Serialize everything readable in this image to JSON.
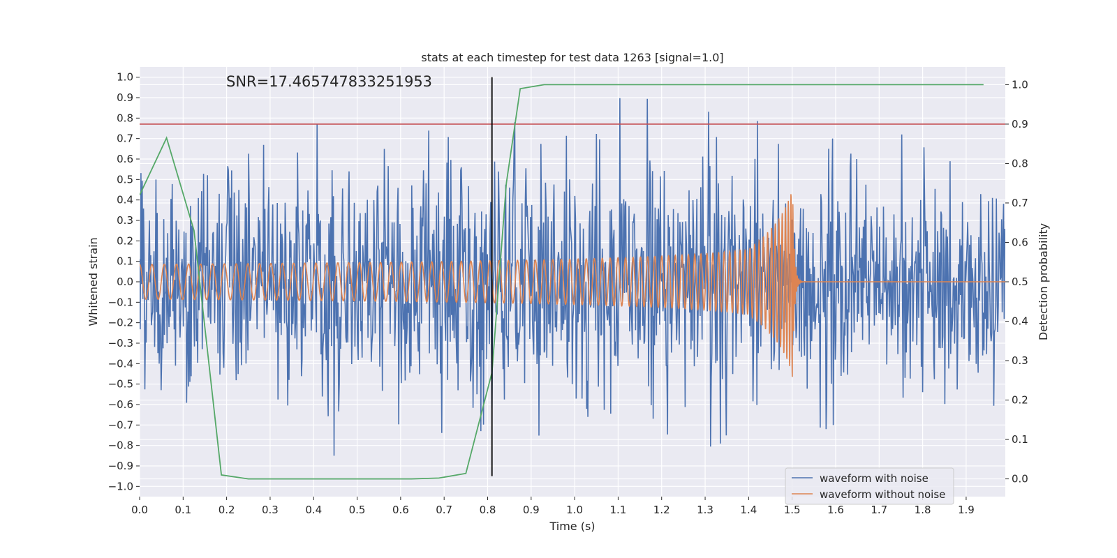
{
  "chart_data": {
    "type": "line",
    "title": "stats at each timestep for test data 1263 [signal=1.0]",
    "annotation": "SNR=17.465747833251953",
    "xlabel": "Time (s)",
    "ylabel": "Whitened strain",
    "y2label": "Detection probability",
    "xlim": [
      0.0,
      1.99
    ],
    "ylim": [
      -1.05,
      1.05
    ],
    "y2lim": [
      -0.045,
      1.045
    ],
    "xticks": [
      0.0,
      0.1,
      0.2,
      0.3,
      0.4,
      0.5,
      0.6,
      0.7,
      0.8,
      0.9,
      1.0,
      1.1,
      1.2,
      1.3,
      1.4,
      1.5,
      1.6,
      1.7,
      1.8,
      1.9
    ],
    "xtick_labels": [
      "0.0",
      "0.1",
      "0.2",
      "0.3",
      "0.4",
      "0.5",
      "0.6",
      "0.7",
      "0.8",
      "0.9",
      "1.0",
      "1.1",
      "1.2",
      "1.3",
      "1.4",
      "1.5",
      "1.6",
      "1.7",
      "1.8",
      "1.9"
    ],
    "yticks": [
      1.0,
      0.9,
      0.8,
      0.7,
      0.6,
      0.5,
      0.4,
      0.3,
      0.2,
      0.1,
      0.0,
      -0.1,
      -0.2,
      -0.3,
      -0.4,
      -0.5,
      -0.6,
      -0.7,
      -0.8,
      -0.9,
      -1.0
    ],
    "ytick_labels": [
      "1.0",
      "0.9",
      "0.8",
      "0.7",
      "0.6",
      "0.5",
      "0.4",
      "0.3",
      "0.2",
      "0.1",
      "0.0",
      "−0.1",
      "−0.2",
      "−0.3",
      "−0.4",
      "−0.5",
      "−0.6",
      "−0.7",
      "−0.8",
      "−0.9",
      "−1.0"
    ],
    "y2ticks": [
      1.0,
      0.9,
      0.8,
      0.7,
      0.6,
      0.5,
      0.4,
      0.3,
      0.2,
      0.1,
      0.0
    ],
    "y2tick_labels": [
      "1.0",
      "0.9",
      "0.8",
      "0.7",
      "0.6",
      "0.5",
      "0.4",
      "0.3",
      "0.2",
      "0.1",
      "0.0"
    ],
    "grid": true,
    "legend_position": "bottom-right",
    "threshold": {
      "axis": "right",
      "value": 0.9,
      "color": "#C44E52"
    },
    "vertical_marker": {
      "x": 0.81,
      "from": -0.95,
      "to": 1.0,
      "color": "#000000"
    },
    "series": [
      {
        "name": "waveform with noise",
        "axis": "left",
        "color": "#4C72B0",
        "kind": "noisy",
        "dt": 0.0015,
        "seed": 1263,
        "envelope_x": [
          0.0,
          0.45,
          0.93,
          1.07,
          1.4,
          1.5,
          1.99
        ],
        "envelope_y": [
          0.78,
          0.9,
          1.0,
          0.9,
          0.88,
          0.72,
          0.72
        ]
      },
      {
        "name": "waveform without noise",
        "axis": "left",
        "color": "#DD8452",
        "kind": "chirp",
        "start": 0.0,
        "merger": 1.5,
        "end": 1.99,
        "f0": 35,
        "f_merge": 300,
        "amp0": 0.085,
        "amp_merge": 0.6,
        "ringdown_tau": 0.004
      },
      {
        "name": "detection probability",
        "axis": "right",
        "color": "#55A868",
        "kind": "polyline",
        "x": [
          0.0,
          0.062,
          0.125,
          0.188,
          0.25,
          0.312,
          0.375,
          0.44,
          0.5,
          0.563,
          0.625,
          0.688,
          0.75,
          0.81,
          0.843,
          0.875,
          0.93,
          1.0,
          1.2,
          1.4,
          1.6,
          1.8,
          1.94
        ],
        "y": [
          0.72,
          0.865,
          0.63,
          0.01,
          0.0,
          0.0,
          0.0,
          0.0,
          0.0,
          0.0,
          0.0,
          0.002,
          0.014,
          0.27,
          0.75,
          0.99,
          1.0,
          1.0,
          1.0,
          1.0,
          1.0,
          1.0,
          1.0
        ]
      }
    ]
  }
}
